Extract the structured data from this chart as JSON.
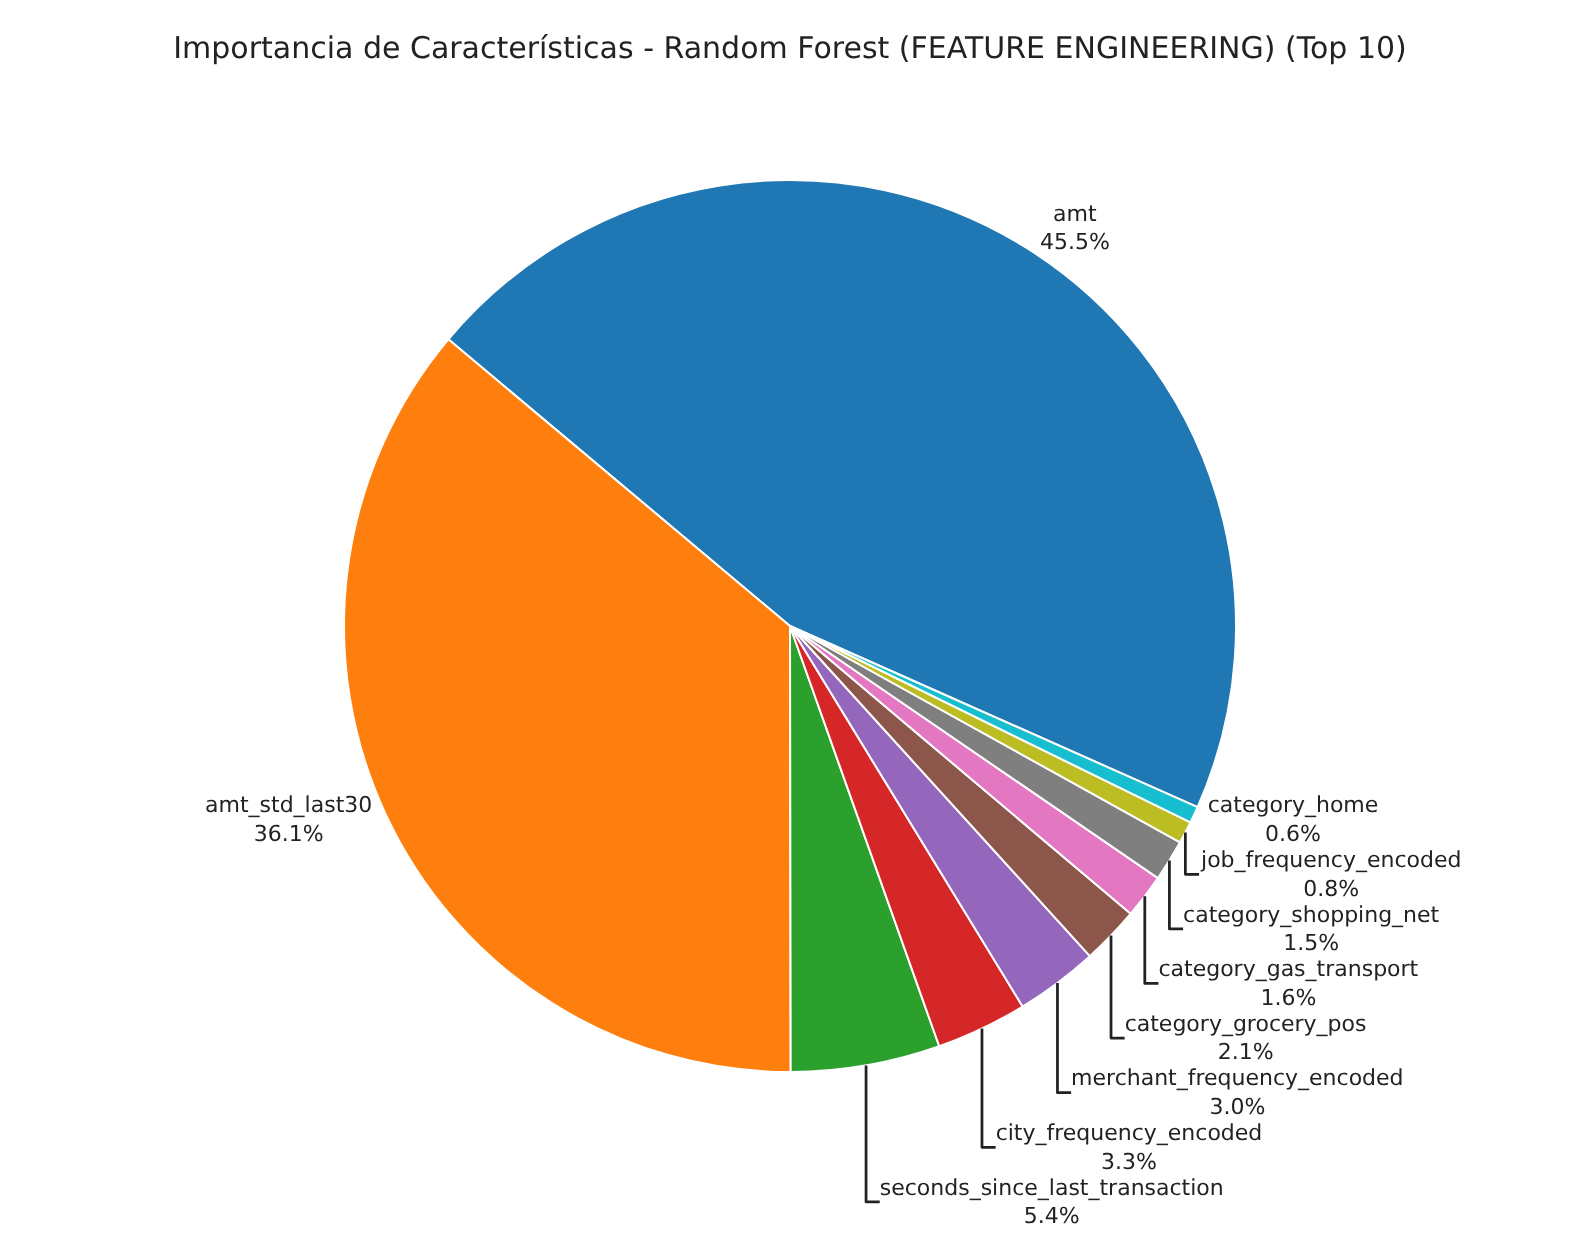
{
  "chart_data": {
    "type": "pie",
    "title": "Importancia de Características - Random Forest (FEATURE ENGINEERING) (Top 10)",
    "categories": [
      "amt",
      "amt_std_last30",
      "seconds_since_last_transaction",
      "city_frequency_encoded",
      "merchant_frequency_encoded",
      "category_grocery_pos",
      "category_gas_transport",
      "category_shopping_net",
      "job_frequency_encoded",
      "category_home"
    ],
    "values": [
      45.5,
      36.1,
      5.4,
      3.3,
      3.0,
      2.1,
      1.6,
      1.5,
      0.8,
      0.6
    ],
    "value_labels": [
      "45.5%",
      "36.1%",
      "5.4%",
      "3.3%",
      "3.0%",
      "2.1%",
      "1.6%",
      "1.5%",
      "0.8%",
      "0.6%"
    ],
    "colors": [
      "#1f77b4",
      "#ff7f0e",
      "#2ca02c",
      "#d62728",
      "#9467bd",
      "#8c564b",
      "#e377c2",
      "#7f7f7f",
      "#bcbd22",
      "#17becf"
    ],
    "legend": false
  }
}
